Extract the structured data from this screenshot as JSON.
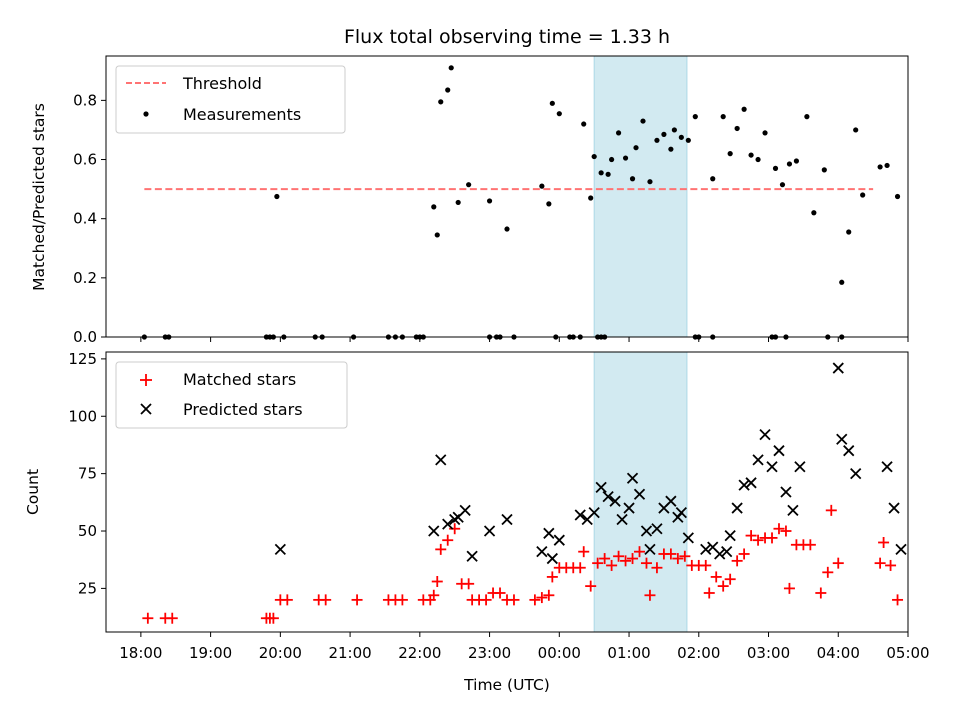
{
  "chart_data": [
    {
      "type": "scatter",
      "title": "Flux total observing time = 1.33 h",
      "xlabel": "",
      "ylabel": "Matched/Predicted stars",
      "ylim": [
        0,
        0.95
      ],
      "yticks": [
        "0.0",
        "0.2",
        "0.4",
        "0.6",
        "0.8"
      ],
      "ytick_values": [
        0,
        0.2,
        0.4,
        0.6,
        0.8
      ],
      "x_unit": "hours after 18:00 UTC",
      "xlim": [
        -0.5,
        11.0
      ],
      "highlight_span": [
        6.5,
        7.83
      ],
      "highlight_color": "#add8e6",
      "legend_position": "upper left",
      "legend": [
        "Threshold",
        "Measurements"
      ],
      "threshold": {
        "name": "Threshold",
        "value": 0.5,
        "x_range": [
          0.05,
          10.5
        ],
        "color": "#ff7373"
      },
      "series": [
        {
          "name": "Measurements",
          "color": "#000000",
          "points": [
            [
              0.05,
              0
            ],
            [
              0.35,
              0
            ],
            [
              0.4,
              0
            ],
            [
              1.8,
              0
            ],
            [
              1.85,
              0
            ],
            [
              1.9,
              0
            ],
            [
              2.05,
              0
            ],
            [
              2.5,
              0
            ],
            [
              2.6,
              0
            ],
            [
              3.05,
              0
            ],
            [
              3.55,
              0
            ],
            [
              3.65,
              0
            ],
            [
              3.75,
              0
            ],
            [
              3.95,
              0
            ],
            [
              4.0,
              0
            ],
            [
              4.05,
              0
            ],
            [
              5.0,
              0
            ],
            [
              5.1,
              0
            ],
            [
              5.15,
              0
            ],
            [
              5.35,
              0
            ],
            [
              6.55,
              0
            ],
            [
              6.6,
              0
            ],
            [
              6.65,
              0
            ],
            [
              5.95,
              0
            ],
            [
              6.15,
              0
            ],
            [
              6.2,
              0
            ],
            [
              6.3,
              0
            ],
            [
              7.95,
              0
            ],
            [
              8.0,
              0
            ],
            [
              8.2,
              0
            ],
            [
              9.05,
              0
            ],
            [
              9.1,
              0
            ],
            [
              9.25,
              0
            ],
            [
              9.85,
              0
            ],
            [
              10.05,
              0
            ],
            [
              1.95,
              0.475
            ],
            [
              4.2,
              0.44
            ],
            [
              4.25,
              0.345
            ],
            [
              4.3,
              0.795
            ],
            [
              4.4,
              0.835
            ],
            [
              4.45,
              0.91
            ],
            [
              4.55,
              0.455
            ],
            [
              4.7,
              0.515
            ],
            [
              5.0,
              0.46
            ],
            [
              5.25,
              0.365
            ],
            [
              5.75,
              0.51
            ],
            [
              5.85,
              0.45
            ],
            [
              5.9,
              0.79
            ],
            [
              6.0,
              0.755
            ],
            [
              6.35,
              0.72
            ],
            [
              6.45,
              0.47
            ],
            [
              6.5,
              0.61
            ],
            [
              6.6,
              0.555
            ],
            [
              6.7,
              0.55
            ],
            [
              6.75,
              0.6
            ],
            [
              6.85,
              0.69
            ],
            [
              6.95,
              0.605
            ],
            [
              7.05,
              0.535
            ],
            [
              7.1,
              0.64
            ],
            [
              7.2,
              0.73
            ],
            [
              7.3,
              0.525
            ],
            [
              7.4,
              0.665
            ],
            [
              7.5,
              0.685
            ],
            [
              7.6,
              0.635
            ],
            [
              7.65,
              0.7
            ],
            [
              7.75,
              0.675
            ],
            [
              7.85,
              0.665
            ],
            [
              7.95,
              0.745
            ],
            [
              8.2,
              0.535
            ],
            [
              8.35,
              0.745
            ],
            [
              8.45,
              0.62
            ],
            [
              8.55,
              0.705
            ],
            [
              8.65,
              0.77
            ],
            [
              8.75,
              0.615
            ],
            [
              8.85,
              0.6
            ],
            [
              8.95,
              0.69
            ],
            [
              9.1,
              0.57
            ],
            [
              9.2,
              0.515
            ],
            [
              9.3,
              0.585
            ],
            [
              9.4,
              0.595
            ],
            [
              9.55,
              0.745
            ],
            [
              9.65,
              0.42
            ],
            [
              9.8,
              0.565
            ],
            [
              10.05,
              0.185
            ],
            [
              10.15,
              0.355
            ],
            [
              10.25,
              0.7
            ],
            [
              10.35,
              0.48
            ],
            [
              10.6,
              0.575
            ],
            [
              10.7,
              0.58
            ],
            [
              10.85,
              0.475
            ]
          ]
        }
      ]
    },
    {
      "type": "scatter",
      "title": "",
      "xlabel": "Time (UTC)",
      "ylabel": "Count",
      "ylim": [
        6,
        128
      ],
      "yticks": [
        "25",
        "50",
        "75",
        "100",
        "125"
      ],
      "ytick_values": [
        25,
        50,
        75,
        100,
        125
      ],
      "x_unit": "hours after 18:00 UTC",
      "xlim": [
        -0.5,
        11.0
      ],
      "xticks": [
        "18:00",
        "19:00",
        "20:00",
        "21:00",
        "22:00",
        "23:00",
        "00:00",
        "01:00",
        "02:00",
        "03:00",
        "04:00",
        "05:00"
      ],
      "xtick_values": [
        0,
        1,
        2,
        3,
        4,
        5,
        6,
        7,
        8,
        9,
        10,
        11
      ],
      "highlight_span": [
        6.5,
        7.83
      ],
      "highlight_color": "#add8e6",
      "legend_position": "upper left",
      "legend": [
        "Matched stars",
        "Predicted stars"
      ],
      "series": [
        {
          "name": "Matched stars",
          "marker": "plus",
          "color": "#ff0000",
          "points": [
            [
              0.1,
              12
            ],
            [
              0.35,
              12
            ],
            [
              0.45,
              12
            ],
            [
              1.8,
              12
            ],
            [
              1.85,
              12
            ],
            [
              1.9,
              12
            ],
            [
              2.0,
              20
            ],
            [
              2.1,
              20
            ],
            [
              2.55,
              20
            ],
            [
              2.65,
              20
            ],
            [
              3.1,
              20
            ],
            [
              3.55,
              20
            ],
            [
              3.65,
              20
            ],
            [
              3.75,
              20
            ],
            [
              4.05,
              20
            ],
            [
              4.15,
              20
            ],
            [
              4.2,
              22
            ],
            [
              4.25,
              28
            ],
            [
              4.3,
              42
            ],
            [
              4.4,
              46
            ],
            [
              4.5,
              51
            ],
            [
              4.6,
              27
            ],
            [
              4.7,
              27
            ],
            [
              4.75,
              20
            ],
            [
              4.85,
              20
            ],
            [
              4.95,
              20
            ],
            [
              5.05,
              23
            ],
            [
              5.15,
              23
            ],
            [
              5.25,
              20
            ],
            [
              5.35,
              20
            ],
            [
              5.65,
              20
            ],
            [
              5.75,
              21
            ],
            [
              5.85,
              22
            ],
            [
              5.9,
              30
            ],
            [
              6.0,
              34
            ],
            [
              6.1,
              34
            ],
            [
              6.2,
              34
            ],
            [
              6.3,
              34
            ],
            [
              6.35,
              41
            ],
            [
              6.45,
              26
            ],
            [
              6.55,
              36
            ],
            [
              6.65,
              38
            ],
            [
              6.75,
              35
            ],
            [
              6.85,
              39
            ],
            [
              6.95,
              37
            ],
            [
              7.05,
              38
            ],
            [
              7.15,
              41
            ],
            [
              7.25,
              36
            ],
            [
              7.3,
              22
            ],
            [
              7.4,
              34
            ],
            [
              7.5,
              40
            ],
            [
              7.6,
              40
            ],
            [
              7.7,
              38
            ],
            [
              7.8,
              39
            ],
            [
              7.9,
              35
            ],
            [
              8.0,
              35
            ],
            [
              8.1,
              35
            ],
            [
              8.15,
              23
            ],
            [
              8.25,
              30
            ],
            [
              8.35,
              26
            ],
            [
              8.45,
              29
            ],
            [
              8.55,
              37
            ],
            [
              8.65,
              40
            ],
            [
              8.75,
              48
            ],
            [
              8.85,
              46
            ],
            [
              8.95,
              47
            ],
            [
              9.05,
              47
            ],
            [
              9.15,
              51
            ],
            [
              9.25,
              50
            ],
            [
              9.3,
              25
            ],
            [
              9.4,
              44
            ],
            [
              9.5,
              44
            ],
            [
              9.6,
              44
            ],
            [
              9.75,
              23
            ],
            [
              9.85,
              32
            ],
            [
              9.9,
              59
            ],
            [
              10.0,
              36
            ],
            [
              10.6,
              36
            ],
            [
              10.65,
              45
            ],
            [
              10.75,
              35
            ],
            [
              10.85,
              20
            ]
          ]
        },
        {
          "name": "Predicted stars",
          "marker": "x",
          "color": "#000000",
          "points": [
            [
              2.0,
              42
            ],
            [
              4.2,
              50
            ],
            [
              4.3,
              81
            ],
            [
              4.4,
              53
            ],
            [
              4.5,
              55
            ],
            [
              4.55,
              56
            ],
            [
              4.65,
              59
            ],
            [
              4.75,
              39
            ],
            [
              5.0,
              50
            ],
            [
              5.25,
              55
            ],
            [
              5.75,
              41
            ],
            [
              5.85,
              49
            ],
            [
              5.9,
              38
            ],
            [
              6.0,
              46
            ],
            [
              6.3,
              57
            ],
            [
              6.4,
              55
            ],
            [
              6.5,
              58
            ],
            [
              6.6,
              69
            ],
            [
              6.7,
              65
            ],
            [
              6.8,
              63
            ],
            [
              6.9,
              55
            ],
            [
              7.0,
              60
            ],
            [
              7.05,
              73
            ],
            [
              7.15,
              66
            ],
            [
              7.25,
              50
            ],
            [
              7.3,
              42
            ],
            [
              7.4,
              51
            ],
            [
              7.5,
              60
            ],
            [
              7.6,
              63
            ],
            [
              7.7,
              56
            ],
            [
              7.75,
              58
            ],
            [
              7.85,
              47
            ],
            [
              8.1,
              42
            ],
            [
              8.2,
              43
            ],
            [
              8.3,
              40
            ],
            [
              8.4,
              41
            ],
            [
              8.45,
              48
            ],
            [
              8.55,
              60
            ],
            [
              8.65,
              70
            ],
            [
              8.75,
              71
            ],
            [
              8.85,
              81
            ],
            [
              8.95,
              92
            ],
            [
              9.05,
              78
            ],
            [
              9.15,
              85
            ],
            [
              9.25,
              67
            ],
            [
              9.35,
              59
            ],
            [
              9.45,
              78
            ],
            [
              10.0,
              121
            ],
            [
              10.05,
              90
            ],
            [
              10.15,
              85
            ],
            [
              10.25,
              75
            ],
            [
              10.7,
              78
            ],
            [
              10.8,
              60
            ],
            [
              10.9,
              42
            ]
          ]
        }
      ]
    }
  ]
}
